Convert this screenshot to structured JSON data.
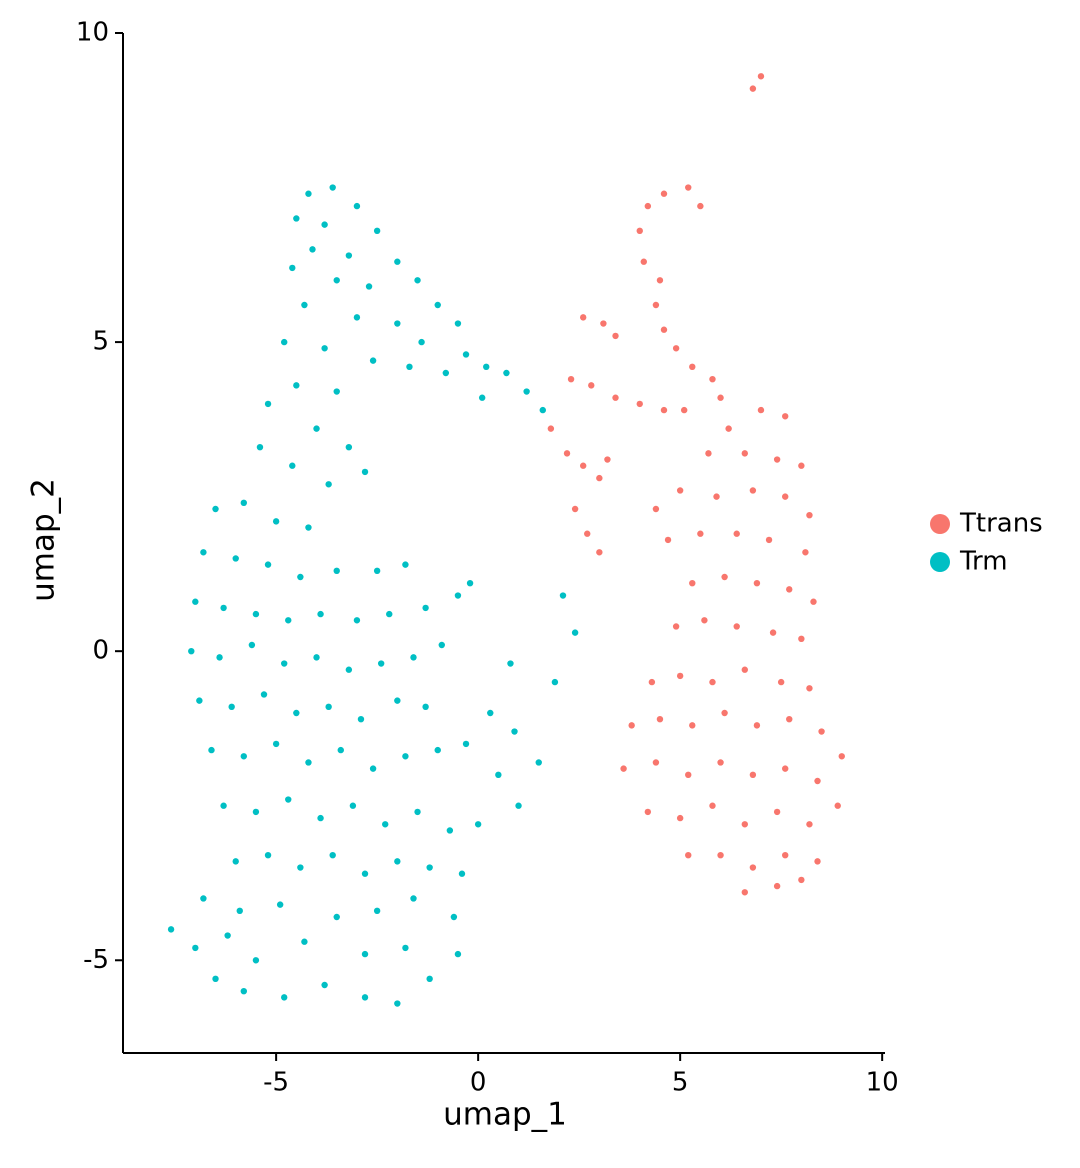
{
  "chart_data": {
    "type": "scatter",
    "x_label": "umap_1",
    "y_label": "umap_2",
    "xlim": [
      -8.79,
      10.07
    ],
    "ylim": [
      -6.5,
      10
    ],
    "xticks": [
      -5,
      0,
      5,
      10
    ],
    "yticks": [
      -5,
      0,
      5,
      10
    ],
    "grid": false,
    "legend": "right",
    "series": [
      {
        "name": "Ttrans",
        "color": "#F8766D",
        "x": [
          6.8,
          7.0,
          4.2,
          4.6,
          5.2,
          5.5,
          4.0,
          4.1,
          4.5,
          4.4,
          4.6,
          4.9,
          5.3,
          5.8,
          6.0,
          2.6,
          3.1,
          3.4,
          2.3,
          2.8,
          3.4,
          4.0,
          4.6,
          5.1,
          1.8,
          2.2,
          2.6,
          3.0,
          2.4,
          2.7,
          3.0,
          3.2,
          6.2,
          7.0,
          7.6,
          5.7,
          6.6,
          7.4,
          8.0,
          5.0,
          5.9,
          6.8,
          7.6,
          8.2,
          4.4,
          4.7,
          5.5,
          6.4,
          7.2,
          8.1,
          5.3,
          6.1,
          6.9,
          7.7,
          8.3,
          4.9,
          5.6,
          6.4,
          7.3,
          8.0,
          4.3,
          5.0,
          5.8,
          6.6,
          7.5,
          8.2,
          3.8,
          4.5,
          5.3,
          6.1,
          6.9,
          7.7,
          8.5,
          9.0,
          3.6,
          4.4,
          5.2,
          6.0,
          6.8,
          7.6,
          8.4,
          4.2,
          5.0,
          5.8,
          6.6,
          7.4,
          8.2,
          8.9,
          5.2,
          6.0,
          6.8,
          7.6,
          8.4,
          6.6,
          7.4,
          8.0
        ],
        "y": [
          9.1,
          9.3,
          7.2,
          7.4,
          7.5,
          7.2,
          6.8,
          6.3,
          6.0,
          5.6,
          5.2,
          4.9,
          4.6,
          4.4,
          4.1,
          5.4,
          5.3,
          5.1,
          4.4,
          4.3,
          4.1,
          4.0,
          3.9,
          3.9,
          3.6,
          3.2,
          3.0,
          2.8,
          2.3,
          1.9,
          1.6,
          3.1,
          3.6,
          3.9,
          3.8,
          3.2,
          3.2,
          3.1,
          3.0,
          2.6,
          2.5,
          2.6,
          2.5,
          2.2,
          2.3,
          1.8,
          1.9,
          1.9,
          1.8,
          1.6,
          1.1,
          1.2,
          1.1,
          1.0,
          0.8,
          0.4,
          0.5,
          0.4,
          0.3,
          0.2,
          -0.5,
          -0.4,
          -0.5,
          -0.3,
          -0.5,
          -0.6,
          -1.2,
          -1.1,
          -1.2,
          -1.0,
          -1.2,
          -1.1,
          -1.3,
          -1.7,
          -1.9,
          -1.8,
          -2.0,
          -1.8,
          -2.0,
          -1.9,
          -2.1,
          -2.6,
          -2.7,
          -2.5,
          -2.8,
          -2.6,
          -2.8,
          -2.5,
          -3.3,
          -3.3,
          -3.5,
          -3.3,
          -3.4,
          -3.9,
          -3.8,
          -3.7
        ]
      },
      {
        "name": "Trm",
        "color": "#00BFC4",
        "x": [
          -4.2,
          -3.6,
          -3.0,
          -4.5,
          -3.8,
          -2.5,
          -4.1,
          -3.2,
          -2.0,
          -1.5,
          -4.6,
          -3.5,
          -2.7,
          -1.0,
          -0.5,
          -4.3,
          -3.0,
          -2.0,
          -1.4,
          -0.3,
          0.2,
          0.7,
          1.2,
          1.6,
          -4.8,
          -3.8,
          -2.6,
          -1.7,
          -0.8,
          0.1,
          -4.5,
          -3.5,
          -5.2,
          -4.0,
          -5.4,
          -3.2,
          -4.6,
          -3.7,
          -2.8,
          -6.5,
          -5.8,
          -5.0,
          -4.2,
          -6.8,
          -6.0,
          -5.2,
          -4.4,
          -3.5,
          -2.5,
          -1.8,
          -7.0,
          -6.3,
          -5.5,
          -4.7,
          -3.9,
          -3.0,
          -2.2,
          -1.3,
          -0.5,
          -0.2,
          -7.1,
          -6.4,
          -5.6,
          -4.8,
          -4.0,
          -3.2,
          -2.4,
          -1.6,
          -0.9,
          -6.9,
          -6.1,
          -5.3,
          -4.5,
          -3.7,
          -2.9,
          -2.0,
          -1.3,
          -6.6,
          -5.8,
          -5.0,
          -4.2,
          -3.4,
          -2.6,
          -1.8,
          -1.0,
          0.3,
          0.9,
          1.5,
          0.5,
          1.0,
          0.0,
          -0.3,
          -6.3,
          -5.5,
          -4.7,
          -3.9,
          -3.1,
          -2.3,
          -1.5,
          -0.7,
          -6.0,
          -5.2,
          -4.4,
          -3.6,
          -2.8,
          -2.0,
          -1.2,
          -0.4,
          -6.8,
          -5.9,
          -4.9,
          -3.5,
          -2.5,
          -1.6,
          -0.6,
          -7.6,
          -7.0,
          -6.2,
          -5.5,
          -4.3,
          -2.8,
          -1.8,
          -0.5,
          -6.5,
          -5.8,
          -4.8,
          -3.8,
          -2.8,
          -2.0,
          -1.2,
          0.8,
          2.1,
          2.4,
          1.9
        ],
        "y": [
          7.4,
          7.5,
          7.2,
          7.0,
          6.9,
          6.8,
          6.5,
          6.4,
          6.3,
          6.0,
          6.2,
          6.0,
          5.9,
          5.6,
          5.3,
          5.6,
          5.4,
          5.3,
          5.0,
          4.8,
          4.6,
          4.5,
          4.2,
          3.9,
          5.0,
          4.9,
          4.7,
          4.6,
          4.5,
          4.1,
          4.3,
          4.2,
          4.0,
          3.6,
          3.3,
          3.3,
          3.0,
          2.7,
          2.9,
          2.3,
          2.4,
          2.1,
          2.0,
          1.6,
          1.5,
          1.4,
          1.2,
          1.3,
          1.3,
          1.4,
          0.8,
          0.7,
          0.6,
          0.5,
          0.6,
          0.5,
          0.6,
          0.7,
          0.9,
          1.1,
          0.0,
          -0.1,
          0.1,
          -0.2,
          -0.1,
          -0.3,
          -0.2,
          -0.1,
          0.1,
          -0.8,
          -0.9,
          -0.7,
          -1.0,
          -0.9,
          -1.1,
          -0.8,
          -0.9,
          -1.6,
          -1.7,
          -1.5,
          -1.8,
          -1.6,
          -1.9,
          -1.7,
          -1.6,
          -1.0,
          -1.3,
          -1.8,
          -2.0,
          -2.5,
          -2.8,
          -1.5,
          -2.5,
          -2.6,
          -2.4,
          -2.7,
          -2.5,
          -2.8,
          -2.6,
          -2.9,
          -3.4,
          -3.3,
          -3.5,
          -3.3,
          -3.6,
          -3.4,
          -3.5,
          -3.6,
          -4.0,
          -4.2,
          -4.1,
          -4.3,
          -4.2,
          -4.0,
          -4.3,
          -4.5,
          -4.8,
          -4.6,
          -5.0,
          -4.7,
          -4.9,
          -4.8,
          -4.9,
          -5.3,
          -5.5,
          -5.6,
          -5.4,
          -5.6,
          -5.7,
          -5.3,
          -0.2,
          0.9,
          0.3,
          -0.5
        ]
      }
    ]
  }
}
